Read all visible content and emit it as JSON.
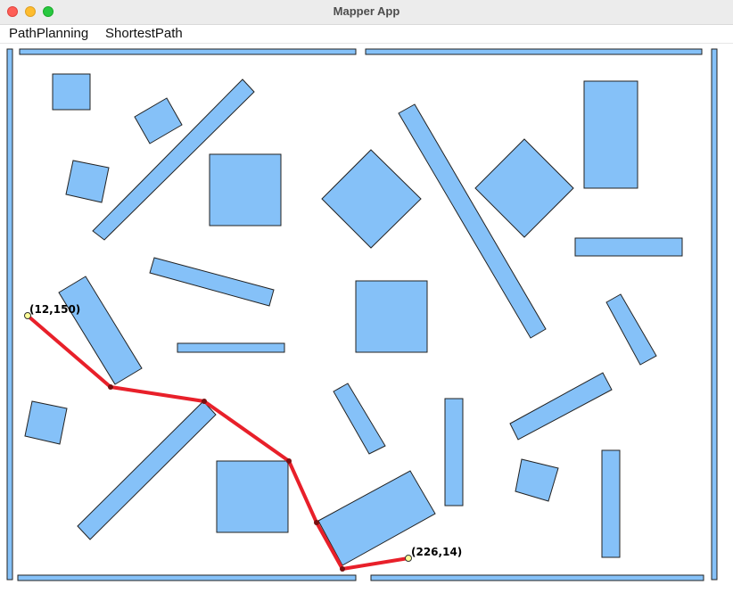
{
  "window": {
    "title": "Mapper App"
  },
  "menu": {
    "items": [
      "PathPlanning",
      "ShortestPath"
    ]
  },
  "map": {
    "start_label": "(12,150)",
    "goal_label": "(226,14)",
    "colors": {
      "obstacle_fill": "#85c1f8",
      "obstacle_stroke": "#222222",
      "path": "#e8202a",
      "endpoint": "#ffff99"
    }
  }
}
